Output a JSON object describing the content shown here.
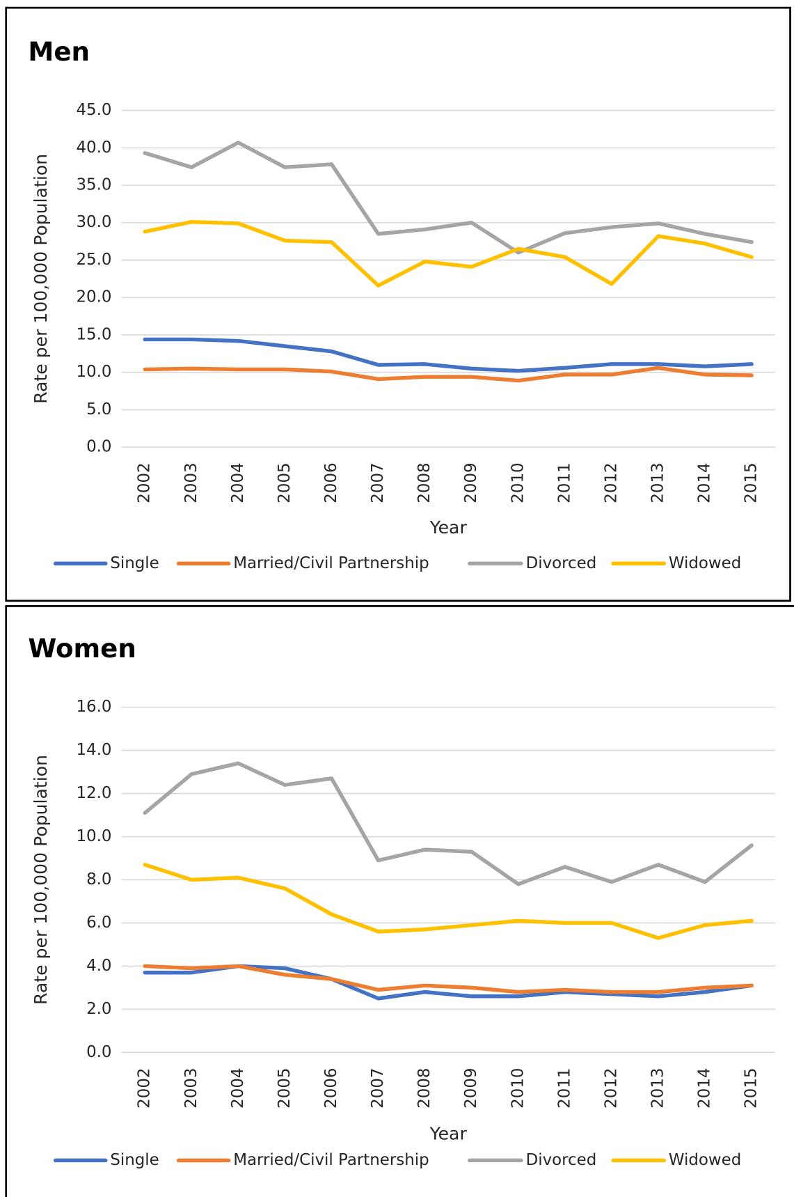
{
  "chart_data": [
    {
      "type": "line",
      "title": "Men",
      "y_label": "Rate per 100,000 Population",
      "x_label": "Year",
      "categories": [
        "2002",
        "2003",
        "2004",
        "2005",
        "2006",
        "2007",
        "2008",
        "2009",
        "2010",
        "2011",
        "2012",
        "2013",
        "2014",
        "2015"
      ],
      "ylim": [
        0,
        45
      ],
      "yticks": [
        {
          "value": 0,
          "label": "0.0"
        },
        {
          "value": 5,
          "label": "5.0"
        },
        {
          "value": 10,
          "label": "10.0"
        },
        {
          "value": 15,
          "label": "15.0"
        },
        {
          "value": 20,
          "label": "20.0"
        },
        {
          "value": 25,
          "label": "25.0"
        },
        {
          "value": 30,
          "label": "30.0"
        },
        {
          "value": 35,
          "label": "35.0"
        },
        {
          "value": 40,
          "label": "40.0"
        },
        {
          "value": 45,
          "label": "45.0"
        }
      ],
      "grid": true,
      "series": [
        {
          "name": "Single",
          "color": "#4472c4",
          "values": [
            14.4,
            14.4,
            14.2,
            13.5,
            12.8,
            11.0,
            11.1,
            10.5,
            10.2,
            10.6,
            11.1,
            11.1,
            10.8,
            11.1
          ]
        },
        {
          "name": "Married/Civil Partnership",
          "color": "#ed7d31",
          "values": [
            10.4,
            10.5,
            10.4,
            10.4,
            10.1,
            9.1,
            9.4,
            9.4,
            8.9,
            9.7,
            9.7,
            10.6,
            9.7,
            9.6
          ]
        },
        {
          "name": "Divorced",
          "color": "#a5a5a5",
          "values": [
            39.3,
            37.4,
            40.7,
            37.4,
            37.8,
            28.5,
            29.1,
            30.0,
            26.0,
            28.6,
            29.4,
            29.9,
            28.5,
            27.4
          ]
        },
        {
          "name": "Widowed",
          "color": "#ffc000",
          "values": [
            28.8,
            30.1,
            29.9,
            27.6,
            27.4,
            21.6,
            24.8,
            24.1,
            26.5,
            25.4,
            21.8,
            28.2,
            27.2,
            25.4
          ]
        }
      ]
    },
    {
      "type": "line",
      "title": "Women",
      "y_label": "Rate per 100,000 Population",
      "x_label": "Year",
      "categories": [
        "2002",
        "2003",
        "2004",
        "2005",
        "2006",
        "2007",
        "2008",
        "2009",
        "2010",
        "2011",
        "2012",
        "2013",
        "2014",
        "2015"
      ],
      "ylim": [
        0,
        16
      ],
      "yticks": [
        {
          "value": 0,
          "label": "0.0"
        },
        {
          "value": 2,
          "label": "2.0"
        },
        {
          "value": 4,
          "label": "4.0"
        },
        {
          "value": 6,
          "label": "6.0"
        },
        {
          "value": 8,
          "label": "8.0"
        },
        {
          "value": 10,
          "label": "10.0"
        },
        {
          "value": 12,
          "label": "12.0"
        },
        {
          "value": 14,
          "label": "14.0"
        },
        {
          "value": 16,
          "label": "16.0"
        }
      ],
      "grid": true,
      "series": [
        {
          "name": "Single",
          "color": "#4472c4",
          "values": [
            3.7,
            3.7,
            4.0,
            3.9,
            3.4,
            2.5,
            2.8,
            2.6,
            2.6,
            2.8,
            2.7,
            2.6,
            2.8,
            3.1
          ]
        },
        {
          "name": "Married/Civil Partnership",
          "color": "#ed7d31",
          "values": [
            4.0,
            3.9,
            4.0,
            3.6,
            3.4,
            2.9,
            3.1,
            3.0,
            2.8,
            2.9,
            2.8,
            2.8,
            3.0,
            3.1
          ]
        },
        {
          "name": "Divorced",
          "color": "#a5a5a5",
          "values": [
            11.1,
            12.9,
            13.4,
            12.4,
            12.7,
            8.9,
            9.4,
            9.3,
            7.8,
            8.6,
            7.9,
            8.7,
            7.9,
            9.6
          ]
        },
        {
          "name": "Widowed",
          "color": "#ffc000",
          "values": [
            8.7,
            8.0,
            8.1,
            7.6,
            6.4,
            5.6,
            5.7,
            5.9,
            6.1,
            6.0,
            6.0,
            5.3,
            5.9,
            6.1
          ]
        }
      ]
    }
  ]
}
